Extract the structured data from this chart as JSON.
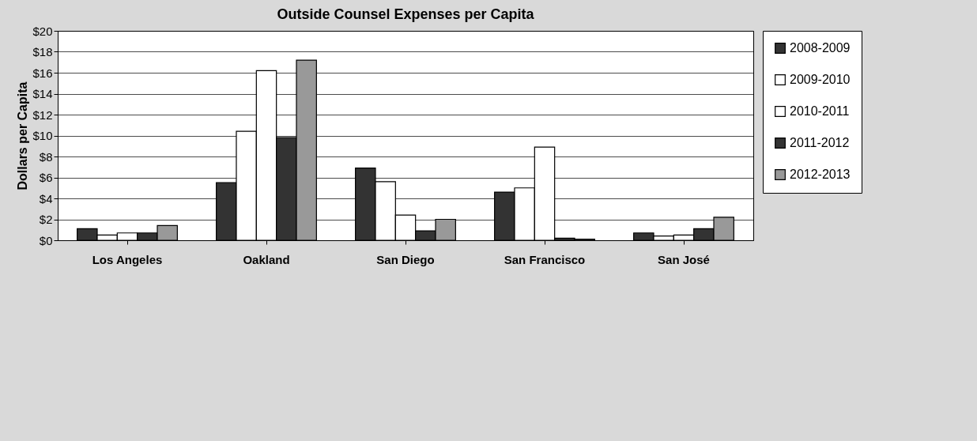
{
  "chart_data": {
    "type": "bar",
    "title": "Outside Counsel Expenses per Capita",
    "ylabel": "Dollars per Capita",
    "categories": [
      "Los Angeles",
      "Oakland",
      "San Diego",
      "San Francisco",
      "San José"
    ],
    "series": [
      {
        "name": "2008-2009",
        "color": "#333333",
        "values": [
          1.1,
          5.5,
          6.9,
          4.6,
          0.7
        ]
      },
      {
        "name": "2009-2010",
        "color": "#ffffff",
        "values": [
          0.5,
          10.4,
          5.6,
          5.0,
          0.4
        ]
      },
      {
        "name": "2010-2011",
        "color": "#ffffff",
        "values": [
          0.7,
          16.2,
          2.4,
          8.9,
          0.5
        ]
      },
      {
        "name": "2011-2012",
        "color": "#333333",
        "values": [
          0.7,
          9.8,
          0.9,
          0.2,
          1.1
        ]
      },
      {
        "name": "2012-2013",
        "color": "#999999",
        "values": [
          1.4,
          17.2,
          2.0,
          0.1,
          2.2
        ]
      }
    ],
    "ylim": [
      0,
      20
    ],
    "yticks": [
      {
        "value": 0,
        "label": "$0"
      },
      {
        "value": 2,
        "label": "$2"
      },
      {
        "value": 4,
        "label": "$4"
      },
      {
        "value": 6,
        "label": "$6"
      },
      {
        "value": 8,
        "label": "$8"
      },
      {
        "value": 10,
        "label": "$10"
      },
      {
        "value": 12,
        "label": "$12"
      },
      {
        "value": 14,
        "label": "$14"
      },
      {
        "value": 16,
        "label": "$16"
      },
      {
        "value": 18,
        "label": "$18"
      },
      {
        "value": 20,
        "label": "$20"
      }
    ],
    "grid": "y",
    "legend": "right"
  }
}
